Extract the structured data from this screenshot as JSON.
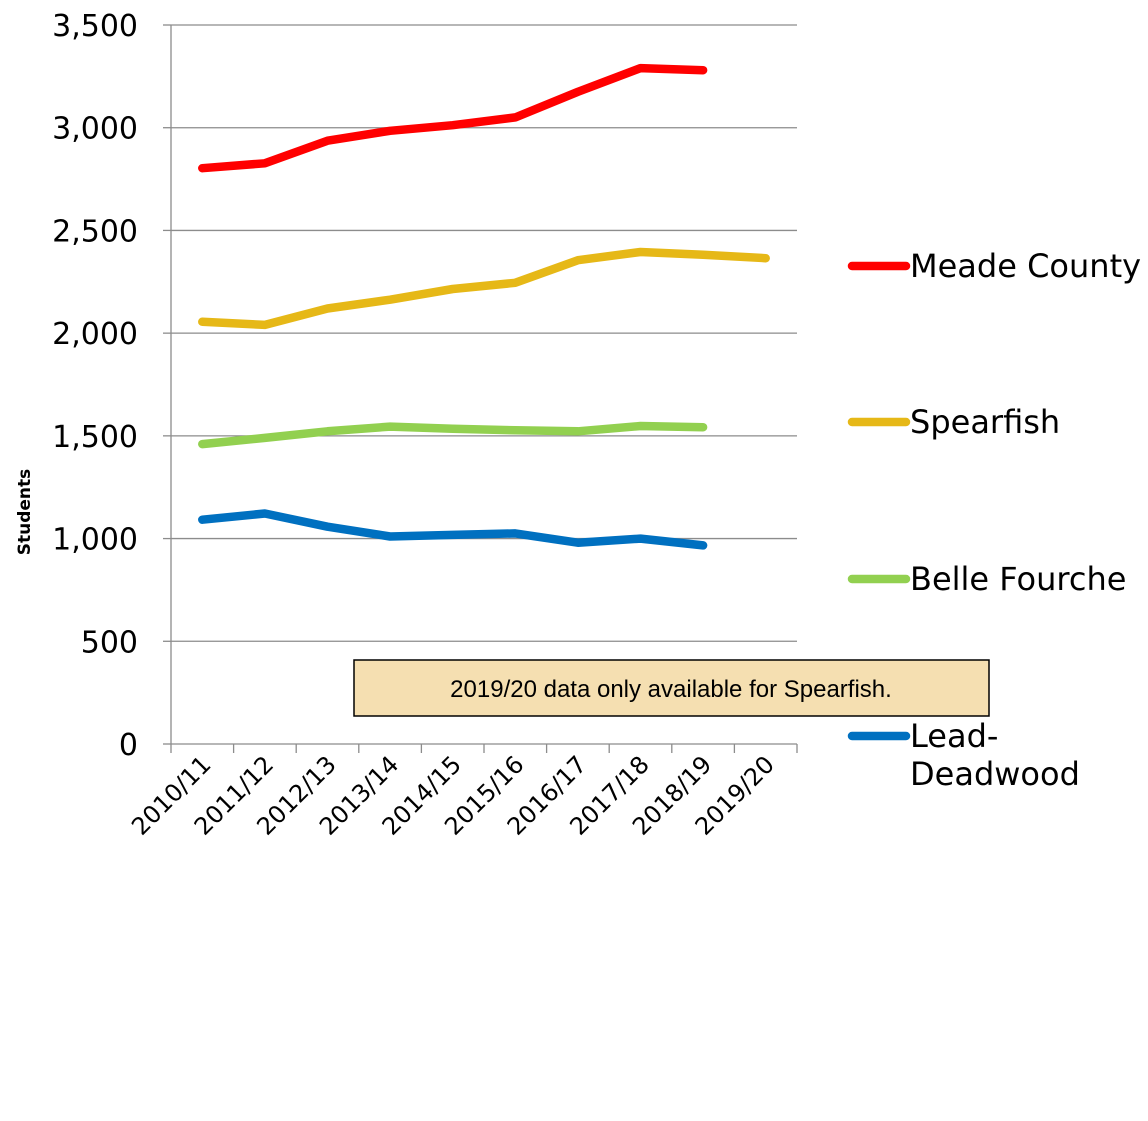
{
  "chart_data": {
    "type": "line",
    "ylabel": "Students",
    "ylim": [
      0,
      3500
    ],
    "yticks": [
      0,
      500,
      1000,
      1500,
      2000,
      2500,
      3000,
      3500
    ],
    "ytick_labels": [
      "0",
      "500",
      "1,000",
      "1,500",
      "2,000",
      "2,500",
      "3,000",
      "3,500"
    ],
    "categories": [
      "2010/11",
      "2011/12",
      "2012/13",
      "2013/14",
      "2014/15",
      "2015/16",
      "2016/17",
      "2017/18",
      "2018/19",
      "2019/20"
    ],
    "grid": "horizontal",
    "legend_position": "right",
    "series": [
      {
        "name": "Meade County",
        "color": "#ff0000",
        "values": [
          2803,
          2827,
          2937,
          2985,
          3012,
          3050,
          3175,
          3290,
          3280,
          null
        ]
      },
      {
        "name": "Spearfish",
        "color": "#e6b817",
        "values": [
          2055,
          2040,
          2120,
          2163,
          2215,
          2245,
          2355,
          2395,
          2382,
          2365
        ]
      },
      {
        "name": "Belle Fourche",
        "color": "#92d050",
        "values": [
          1460,
          1490,
          1522,
          1545,
          1535,
          1527,
          1522,
          1548,
          1542,
          null
        ]
      },
      {
        "name": "Lead-\nDeadwood",
        "color": "#0070c0",
        "values": [
          1092,
          1122,
          1058,
          1010,
          1018,
          1025,
          980,
          1000,
          967,
          null
        ]
      }
    ],
    "annotation": "2019/20 data only available for Spearfish.",
    "annotation_bg": "#f5dfb1"
  }
}
